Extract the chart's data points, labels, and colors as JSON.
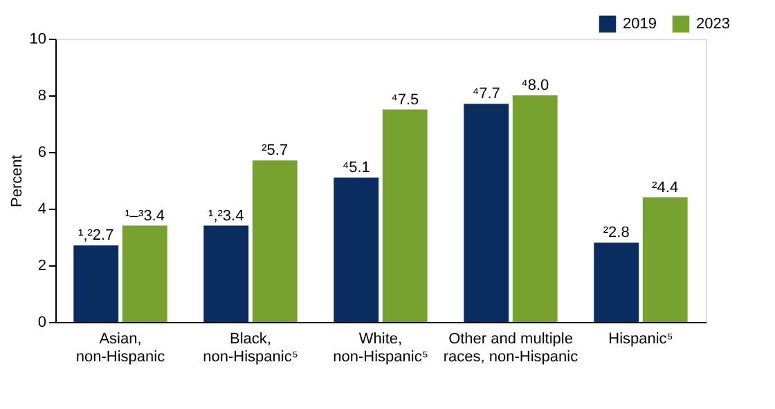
{
  "chart_data": {
    "type": "bar",
    "ylabel": "Percent",
    "categories": [
      "Asian,\nnon-Hispanic",
      "Black,\nnon-Hispanic⁵",
      "White,\nnon-Hispanic⁵",
      "Other and multiple\nraces, non-Hispanic",
      "Hispanic⁵"
    ],
    "series": [
      {
        "name": "2019",
        "color": "#0b2c5e",
        "values": [
          2.7,
          3.4,
          5.1,
          7.7,
          2.8
        ],
        "value_labels": [
          "¹,²2.7",
          "¹,²3.4",
          "⁴5.1",
          "⁴7.7",
          "²2.8"
        ]
      },
      {
        "name": "2023",
        "color": "#78a22f",
        "values": [
          3.4,
          5.7,
          7.5,
          8.0,
          4.4
        ],
        "value_labels": [
          "¹–³3.4",
          "²5.7",
          "⁴7.5",
          "⁴8.0",
          "²4.4"
        ]
      }
    ],
    "ylim": [
      0,
      10
    ],
    "yticks": [
      0,
      2,
      4,
      6,
      8,
      10
    ],
    "grid": false,
    "legend": "top right"
  }
}
